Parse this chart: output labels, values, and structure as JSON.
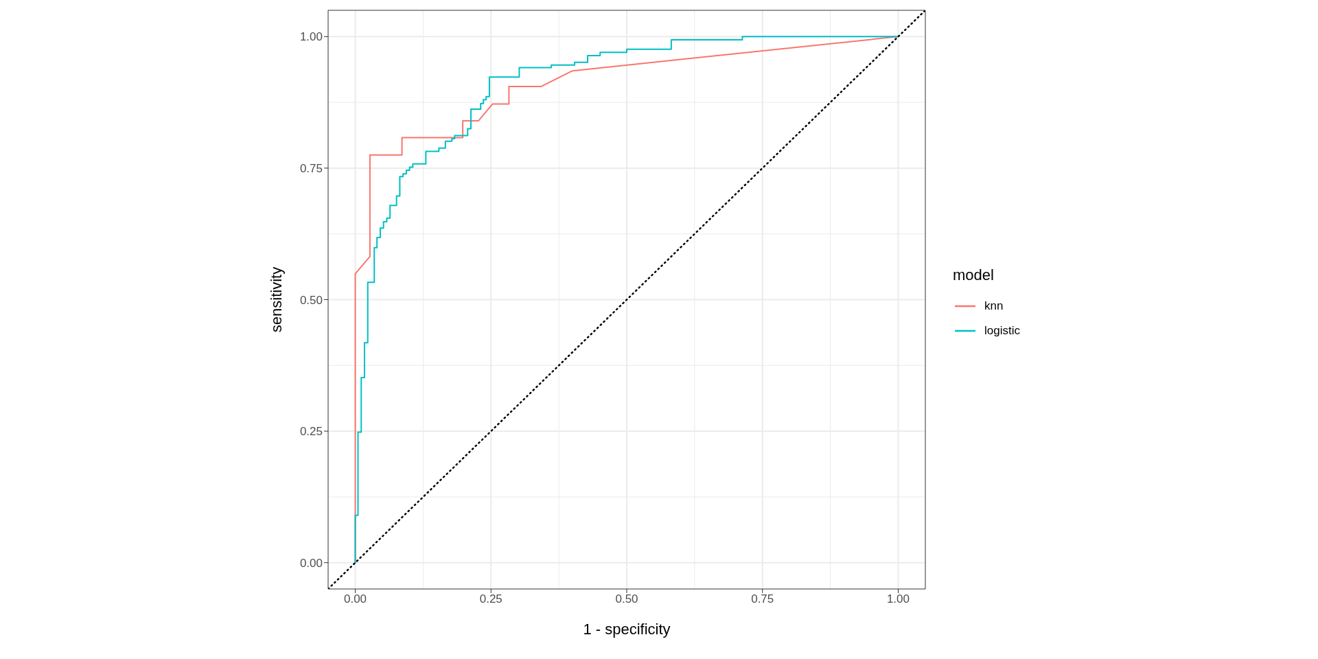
{
  "chart_data": {
    "type": "line",
    "xlabel": "1 - specificity",
    "ylabel": "sensitivity",
    "legend_title": "model",
    "legend": "right",
    "grid": true,
    "xlim": [
      -0.05,
      1.05
    ],
    "ylim": [
      -0.05,
      1.05
    ],
    "xticks": [
      {
        "value": 0,
        "label": "0.00"
      },
      {
        "value": 0.25,
        "label": "0.25"
      },
      {
        "value": 0.5,
        "label": "0.50"
      },
      {
        "value": 0.75,
        "label": "0.75"
      },
      {
        "value": 1,
        "label": "1.00"
      }
    ],
    "yticks": [
      {
        "value": 0,
        "label": "0.00"
      },
      {
        "value": 0.25,
        "label": "0.25"
      },
      {
        "value": 0.5,
        "label": "0.50"
      },
      {
        "value": 0.75,
        "label": "0.75"
      },
      {
        "value": 1,
        "label": "1.00"
      }
    ],
    "series": [
      {
        "name": "knn",
        "color": "#f8766d",
        "x": [
          0,
          0,
          0.027,
          0.027,
          0.086,
          0.086,
          0.198,
          0.198,
          0.227,
          0.253,
          0.283,
          0.283,
          0.342,
          0.4,
          1
        ],
        "values": [
          0,
          0.549,
          0.582,
          0.775,
          0.775,
          0.808,
          0.808,
          0.84,
          0.84,
          0.872,
          0.872,
          0.905,
          0.905,
          0.935,
          1
        ]
      },
      {
        "name": "logistic",
        "type": "step",
        "color": "#00bfc4",
        "x": [
          0,
          0,
          0.005,
          0.011,
          0.017,
          0.023,
          0.035,
          0.04,
          0.046,
          0.052,
          0.058,
          0.064,
          0.076,
          0.082,
          0.088,
          0.094,
          0.1,
          0.106,
          0.13,
          0.154,
          0.166,
          0.178,
          0.183,
          0.207,
          0.213,
          0.231,
          0.236,
          0.241,
          0.247,
          0.302,
          0.361,
          0.404,
          0.428,
          0.451,
          0.5,
          0.582,
          0.713,
          1
        ],
        "values": [
          0,
          0.09,
          0.248,
          0.352,
          0.418,
          0.533,
          0.599,
          0.618,
          0.636,
          0.648,
          0.655,
          0.679,
          0.697,
          0.734,
          0.739,
          0.746,
          0.752,
          0.758,
          0.782,
          0.788,
          0.801,
          0.806,
          0.812,
          0.825,
          0.862,
          0.873,
          0.88,
          0.886,
          0.923,
          0.941,
          0.946,
          0.951,
          0.964,
          0.97,
          0.976,
          0.994,
          1,
          1
        ]
      },
      {
        "color": "#000000",
        "line_style": "dotted",
        "x": [
          -0.05,
          1.05
        ],
        "values": [
          -0.05,
          1.05
        ]
      }
    ]
  }
}
